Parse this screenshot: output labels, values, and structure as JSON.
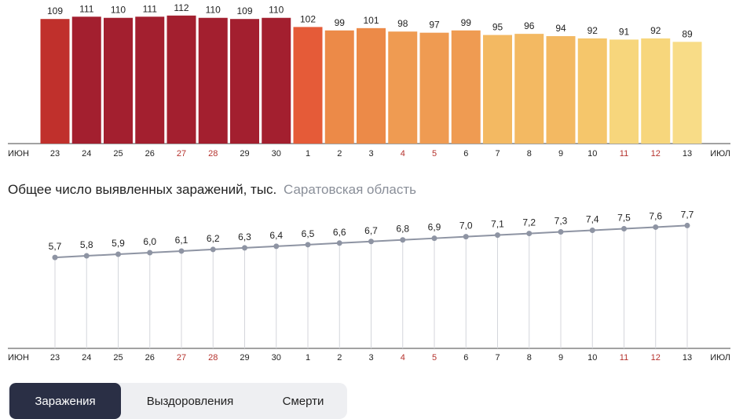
{
  "bar_chart": {
    "month_start": "ИЮН",
    "month_end": "ИЮЛ"
  },
  "line_chart": {
    "title": "Общее число выявленных заражений, тыс.",
    "region": "Саратовская область",
    "month_start": "ИЮН",
    "month_end": "ИЮЛ"
  },
  "tabs": [
    {
      "label": "Заражения",
      "active": true
    },
    {
      "label": "Выздоровления",
      "active": false
    },
    {
      "label": "Смерти",
      "active": false
    }
  ],
  "colors": {
    "weekend_label": "#b5322d",
    "weekday_label": "#222222",
    "line": "#8e94a3",
    "tab_active_bg": "#2a2f45"
  },
  "chart_data": [
    {
      "type": "bar",
      "categories": [
        "23",
        "24",
        "25",
        "26",
        "27",
        "28",
        "29",
        "30",
        "1",
        "2",
        "3",
        "4",
        "5",
        "6",
        "7",
        "8",
        "9",
        "10",
        "11",
        "12",
        "13"
      ],
      "weekend": [
        false,
        false,
        false,
        false,
        true,
        true,
        false,
        false,
        false,
        false,
        false,
        true,
        true,
        false,
        false,
        false,
        false,
        false,
        true,
        true,
        false
      ],
      "values": [
        109,
        111,
        110,
        111,
        112,
        110,
        109,
        110,
        102,
        99,
        101,
        98,
        97,
        99,
        95,
        96,
        94,
        92,
        91,
        92,
        89
      ],
      "colors": [
        "#c0302c",
        "#a31f2f",
        "#a31f2f",
        "#a31f2f",
        "#a31f2f",
        "#a31f2f",
        "#a31f2f",
        "#a31f2f",
        "#e55b38",
        "#ec8a48",
        "#ec8a48",
        "#ef9b52",
        "#ef9b52",
        "#ef9b52",
        "#f3b962",
        "#f3b962",
        "#f3b962",
        "#f5c66b",
        "#f7d67c",
        "#f7d67c",
        "#f8dc87"
      ],
      "ylim": [
        0,
        116
      ]
    },
    {
      "type": "line",
      "categories": [
        "23",
        "24",
        "25",
        "26",
        "27",
        "28",
        "29",
        "30",
        "1",
        "2",
        "3",
        "4",
        "5",
        "6",
        "7",
        "8",
        "9",
        "10",
        "11",
        "12",
        "13"
      ],
      "weekend": [
        false,
        false,
        false,
        false,
        true,
        true,
        false,
        false,
        false,
        false,
        false,
        true,
        true,
        false,
        false,
        false,
        false,
        false,
        true,
        true,
        false
      ],
      "values": [
        5.7,
        5.8,
        5.9,
        6.0,
        6.1,
        6.2,
        6.3,
        6.4,
        6.5,
        6.6,
        6.7,
        6.8,
        6.9,
        7.0,
        7.1,
        7.2,
        7.3,
        7.4,
        7.5,
        7.6,
        7.7
      ],
      "labels": [
        "5,7",
        "5,8",
        "5,9",
        "6,0",
        "6,1",
        "6,2",
        "6,3",
        "6,4",
        "6,5",
        "6,6",
        "6,7",
        "6,8",
        "6,9",
        "7,0",
        "7,1",
        "7,2",
        "7,3",
        "7,4",
        "7,5",
        "7,6",
        "7,7"
      ],
      "ylim": [
        0,
        8.95
      ]
    }
  ]
}
